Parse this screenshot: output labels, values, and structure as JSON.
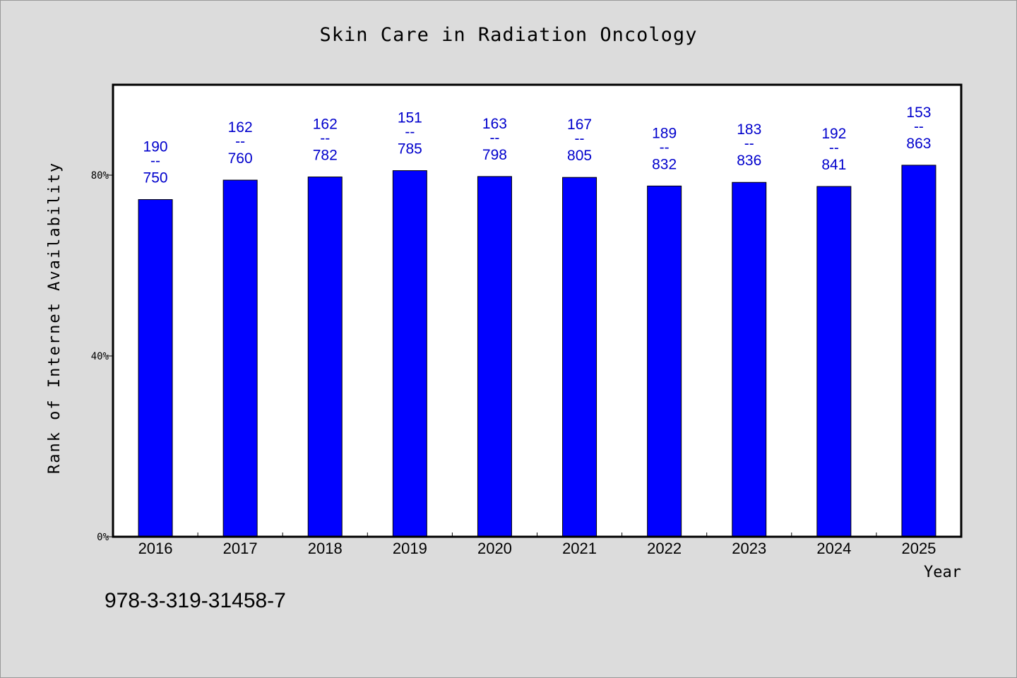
{
  "chart_data": {
    "type": "bar",
    "title": "Skin Care in Radiation Oncology",
    "xlabel": "Year",
    "ylabel": "Rank of Internet Availability",
    "categories": [
      "2016",
      "2017",
      "2018",
      "2019",
      "2020",
      "2021",
      "2022",
      "2023",
      "2024",
      "2025"
    ],
    "values": [
      74.6,
      78.9,
      79.6,
      81.0,
      79.7,
      79.5,
      77.6,
      78.4,
      77.5,
      82.2
    ],
    "bar_labels": [
      {
        "top": "190",
        "sep": "--",
        "bottom": "750"
      },
      {
        "top": "162",
        "sep": "--",
        "bottom": "760"
      },
      {
        "top": "162",
        "sep": "--",
        "bottom": "782"
      },
      {
        "top": "151",
        "sep": "--",
        "bottom": "785"
      },
      {
        "top": "163",
        "sep": "--",
        "bottom": "798"
      },
      {
        "top": "167",
        "sep": "--",
        "bottom": "805"
      },
      {
        "top": "189",
        "sep": "--",
        "bottom": "832"
      },
      {
        "top": "183",
        "sep": "--",
        "bottom": "836"
      },
      {
        "top": "192",
        "sep": "--",
        "bottom": "841"
      },
      {
        "top": "153",
        "sep": "--",
        "bottom": "863"
      }
    ],
    "y_ticks": [
      0,
      40,
      80
    ],
    "y_tick_labels": [
      "0%",
      "40%",
      "80%"
    ],
    "ylim": [
      0,
      100
    ],
    "grid": false,
    "legend": "none",
    "bar_color": "#0000ff",
    "label_color": "#0000cc"
  },
  "footer": {
    "isbn": "978-3-319-31458-7"
  }
}
